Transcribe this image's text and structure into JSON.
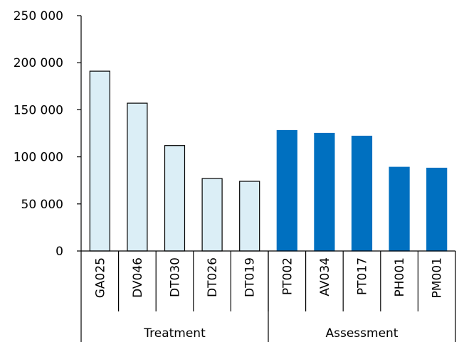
{
  "chart_data": {
    "type": "bar",
    "title": "",
    "xlabel": "",
    "ylabel": "",
    "ylim": [
      0,
      250000
    ],
    "yticks": [
      0,
      50000,
      100000,
      150000,
      200000,
      250000
    ],
    "ytick_labels": [
      "0",
      "50 000",
      "100 000",
      "150 000",
      "200 000",
      "250 000"
    ],
    "categories": [
      "GA025",
      "DV046",
      "DT030",
      "DT026",
      "DT019",
      "PT002",
      "AV034",
      "PT017",
      "PH001",
      "PM001"
    ],
    "values": [
      191000,
      157000,
      112000,
      77000,
      74000,
      128000,
      125000,
      122000,
      89000,
      88000
    ],
    "groups": [
      {
        "name": "Treatment",
        "categories": [
          "GA025",
          "DV046",
          "DT030",
          "DT026",
          "DT019"
        ],
        "color": "#dbeef6",
        "edge": "#000000"
      },
      {
        "name": "Assessment",
        "categories": [
          "PT002",
          "AV034",
          "PT017",
          "PH001",
          "PM001"
        ],
        "color": "#0070c0",
        "edge": "#0070c0"
      }
    ],
    "grid": false,
    "legend": "none"
  }
}
